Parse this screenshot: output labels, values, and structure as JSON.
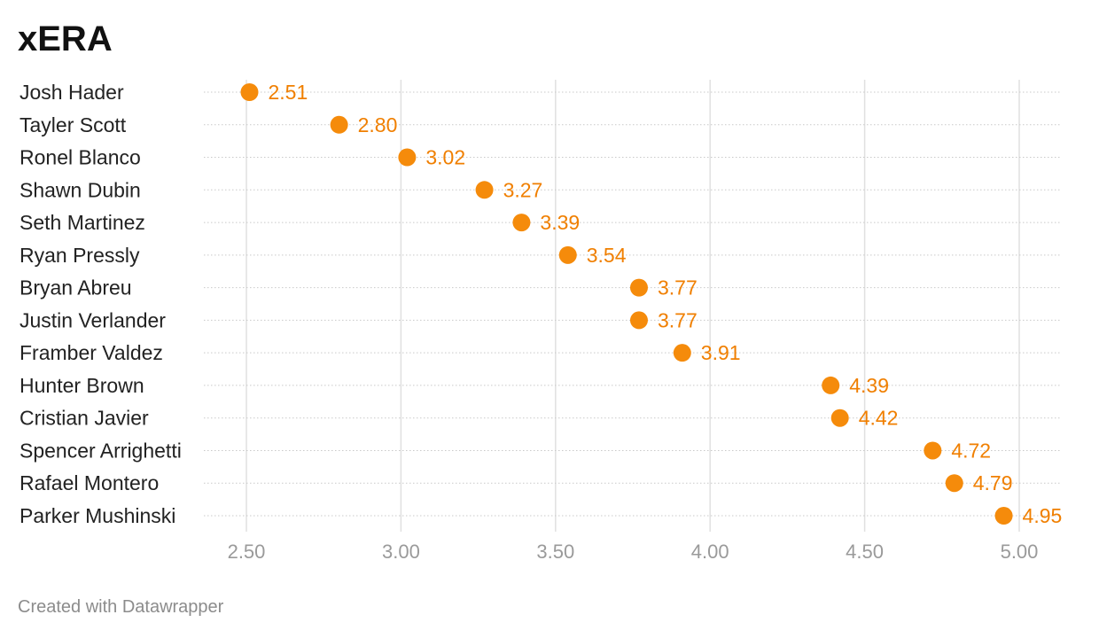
{
  "title": "xERA",
  "footer": "Created with Datawrapper",
  "colors": {
    "dot": "#f58b0b",
    "value_text": "#f07f00",
    "gridline": "#e0e0e0",
    "row_line": "#c9c9c9"
  },
  "chart_data": {
    "type": "scatter",
    "title": "xERA",
    "xlim": [
      2.5,
      5.0
    ],
    "x_ticks": [
      "2.50",
      "3.00",
      "3.50",
      "4.00",
      "4.50",
      "5.00"
    ],
    "grid": true,
    "categories": [
      "Josh Hader",
      "Tayler Scott",
      "Ronel Blanco",
      "Shawn Dubin",
      "Seth Martinez",
      "Ryan Pressly",
      "Bryan Abreu",
      "Justin Verlander",
      "Framber Valdez",
      "Hunter Brown",
      "Cristian Javier",
      "Spencer Arrighetti",
      "Rafael Montero",
      "Parker Mushinski"
    ],
    "values": [
      2.51,
      2.8,
      3.02,
      3.27,
      3.39,
      3.54,
      3.77,
      3.77,
      3.91,
      4.39,
      4.42,
      4.72,
      4.79,
      4.95
    ],
    "value_labels": [
      "2.51",
      "2.80",
      "3.02",
      "3.27",
      "3.39",
      "3.54",
      "3.77",
      "3.77",
      "3.91",
      "4.39",
      "4.42",
      "4.72",
      "4.79",
      "4.95"
    ]
  }
}
